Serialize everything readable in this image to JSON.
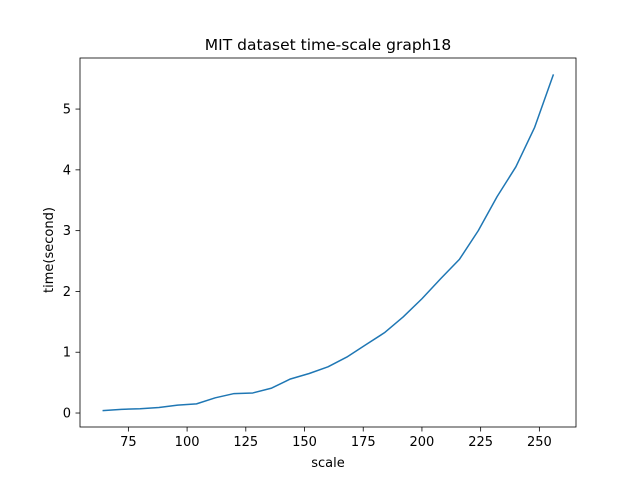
{
  "chart_data": {
    "type": "line",
    "title": "MIT dataset time-scale graph18",
    "xlabel": "scale",
    "ylabel": "time(second)",
    "xlim": [
      54.4,
      265.6
    ],
    "ylim": [
      -0.23,
      5.84
    ],
    "x_ticks": [
      75,
      100,
      125,
      150,
      175,
      200,
      225,
      250
    ],
    "y_ticks": [
      0,
      1,
      2,
      3,
      4,
      5
    ],
    "grid": false,
    "legend": "none",
    "series": [
      {
        "color": "#1f77b4",
        "x": [
          64,
          72,
          80,
          88,
          96,
          104,
          112,
          120,
          128,
          136,
          144,
          152,
          160,
          168,
          176,
          184,
          192,
          200,
          208,
          216,
          224,
          232,
          240,
          248,
          256
        ],
        "y": [
          0.04,
          0.06,
          0.07,
          0.09,
          0.13,
          0.15,
          0.25,
          0.32,
          0.33,
          0.41,
          0.56,
          0.65,
          0.76,
          0.92,
          1.12,
          1.32,
          1.58,
          1.88,
          2.21,
          2.53,
          3.0,
          3.56,
          4.05,
          4.7,
          5.57
        ]
      }
    ]
  }
}
